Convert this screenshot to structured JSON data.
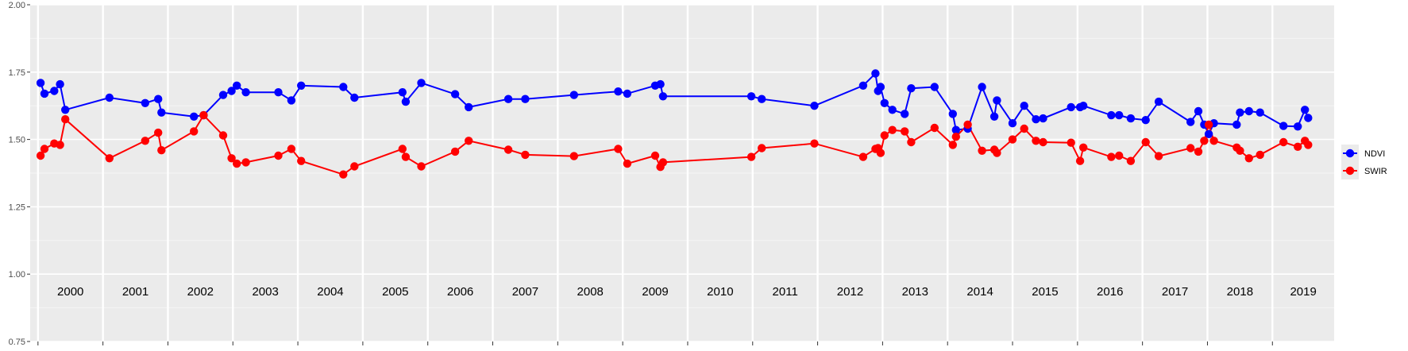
{
  "chart_data": {
    "type": "line",
    "title": "",
    "xlabel": "",
    "ylabel": "",
    "xlim": [
      1999.88,
      2019.95
    ],
    "ylim": [
      0.75,
      2.0
    ],
    "yticks": [
      0.75,
      1.0,
      1.25,
      1.5,
      1.75,
      2.0
    ],
    "ytick_labels": [
      "0.75",
      "1.00",
      "1.25",
      "1.50",
      "1.75",
      "2.00"
    ],
    "year_labels": [
      "2000",
      "2001",
      "2002",
      "2003",
      "2004",
      "2005",
      "2006",
      "2007",
      "2008",
      "2009",
      "2010",
      "2011",
      "2012",
      "2013",
      "2014",
      "2015",
      "2016",
      "2017",
      "2018",
      "2019"
    ],
    "grid": true,
    "legend_position": "right",
    "series": [
      {
        "name": "NDVI",
        "color": "#0000ff",
        "points": [
          [
            2000.04,
            1.71
          ],
          [
            2000.1,
            1.67
          ],
          [
            2000.25,
            1.68
          ],
          [
            2000.34,
            1.705
          ],
          [
            2000.42,
            1.61
          ],
          [
            2001.1,
            1.655
          ],
          [
            2001.65,
            1.635
          ],
          [
            2001.85,
            1.65
          ],
          [
            2001.9,
            1.6
          ],
          [
            2002.4,
            1.585
          ],
          [
            2002.55,
            1.59
          ],
          [
            2002.85,
            1.665
          ],
          [
            2002.98,
            1.68
          ],
          [
            2003.06,
            1.7
          ],
          [
            2003.2,
            1.675
          ],
          [
            2003.7,
            1.675
          ],
          [
            2003.9,
            1.645
          ],
          [
            2004.05,
            1.7
          ],
          [
            2004.7,
            1.695
          ],
          [
            2004.87,
            1.655
          ],
          [
            2005.61,
            1.675
          ],
          [
            2005.66,
            1.64
          ],
          [
            2005.9,
            1.71
          ],
          [
            2006.42,
            1.668
          ],
          [
            2006.63,
            1.62
          ],
          [
            2007.24,
            1.65
          ],
          [
            2007.5,
            1.65
          ],
          [
            2008.25,
            1.665
          ],
          [
            2008.93,
            1.678
          ],
          [
            2009.07,
            1.67
          ],
          [
            2009.5,
            1.7
          ],
          [
            2009.58,
            1.705
          ],
          [
            2009.62,
            1.66
          ],
          [
            2010.98,
            1.66
          ],
          [
            2011.14,
            1.65
          ],
          [
            2011.95,
            1.625
          ],
          [
            2012.7,
            1.7
          ],
          [
            2012.89,
            1.745
          ],
          [
            2012.93,
            1.68
          ],
          [
            2012.97,
            1.695
          ],
          [
            2013.03,
            1.635
          ],
          [
            2013.15,
            1.61
          ],
          [
            2013.34,
            1.595
          ],
          [
            2013.44,
            1.69
          ],
          [
            2013.8,
            1.695
          ],
          [
            2014.08,
            1.595
          ],
          [
            2014.13,
            1.535
          ],
          [
            2014.31,
            1.54
          ],
          [
            2014.53,
            1.695
          ],
          [
            2014.72,
            1.585
          ],
          [
            2014.76,
            1.645
          ],
          [
            2015.0,
            1.56
          ],
          [
            2015.18,
            1.625
          ],
          [
            2015.36,
            1.575
          ],
          [
            2015.47,
            1.578
          ],
          [
            2015.9,
            1.62
          ],
          [
            2016.04,
            1.62
          ],
          [
            2016.09,
            1.625
          ],
          [
            2016.52,
            1.59
          ],
          [
            2016.64,
            1.59
          ],
          [
            2016.82,
            1.578
          ],
          [
            2017.05,
            1.572
          ],
          [
            2017.25,
            1.64
          ],
          [
            2017.74,
            1.565
          ],
          [
            2017.86,
            1.605
          ],
          [
            2017.95,
            1.555
          ],
          [
            2018.02,
            1.52
          ],
          [
            2018.1,
            1.56
          ],
          [
            2018.45,
            1.555
          ],
          [
            2018.5,
            1.6
          ],
          [
            2018.64,
            1.605
          ],
          [
            2018.81,
            1.6
          ],
          [
            2019.17,
            1.55
          ],
          [
            2019.39,
            1.548
          ],
          [
            2019.5,
            1.61
          ],
          [
            2019.55,
            1.58
          ]
        ]
      },
      {
        "name": "SWIR",
        "color": "#ff0000",
        "points": [
          [
            2000.04,
            1.44
          ],
          [
            2000.1,
            1.465
          ],
          [
            2000.25,
            1.485
          ],
          [
            2000.34,
            1.48
          ],
          [
            2000.42,
            1.575
          ],
          [
            2001.1,
            1.43
          ],
          [
            2001.65,
            1.495
          ],
          [
            2001.85,
            1.525
          ],
          [
            2001.9,
            1.46
          ],
          [
            2002.4,
            1.53
          ],
          [
            2002.55,
            1.59
          ],
          [
            2002.85,
            1.515
          ],
          [
            2002.98,
            1.43
          ],
          [
            2003.06,
            1.41
          ],
          [
            2003.2,
            1.415
          ],
          [
            2003.7,
            1.44
          ],
          [
            2003.9,
            1.465
          ],
          [
            2004.05,
            1.42
          ],
          [
            2004.7,
            1.37
          ],
          [
            2004.87,
            1.4
          ],
          [
            2005.61,
            1.465
          ],
          [
            2005.66,
            1.435
          ],
          [
            2005.9,
            1.4
          ],
          [
            2006.42,
            1.455
          ],
          [
            2006.63,
            1.495
          ],
          [
            2007.24,
            1.462
          ],
          [
            2007.5,
            1.443
          ],
          [
            2008.25,
            1.438
          ],
          [
            2008.93,
            1.465
          ],
          [
            2009.07,
            1.41
          ],
          [
            2009.5,
            1.44
          ],
          [
            2009.58,
            1.398
          ],
          [
            2009.62,
            1.415
          ],
          [
            2010.98,
            1.435
          ],
          [
            2011.14,
            1.468
          ],
          [
            2011.95,
            1.485
          ],
          [
            2012.7,
            1.435
          ],
          [
            2012.89,
            1.465
          ],
          [
            2012.93,
            1.468
          ],
          [
            2012.97,
            1.45
          ],
          [
            2013.03,
            1.515
          ],
          [
            2013.15,
            1.535
          ],
          [
            2013.34,
            1.53
          ],
          [
            2013.44,
            1.49
          ],
          [
            2013.8,
            1.543
          ],
          [
            2014.08,
            1.48
          ],
          [
            2014.13,
            1.51
          ],
          [
            2014.31,
            1.555
          ],
          [
            2014.53,
            1.458
          ],
          [
            2014.72,
            1.462
          ],
          [
            2014.76,
            1.45
          ],
          [
            2015.0,
            1.5
          ],
          [
            2015.18,
            1.54
          ],
          [
            2015.36,
            1.495
          ],
          [
            2015.47,
            1.49
          ],
          [
            2015.9,
            1.488
          ],
          [
            2016.04,
            1.42
          ],
          [
            2016.09,
            1.47
          ],
          [
            2016.52,
            1.435
          ],
          [
            2016.64,
            1.44
          ],
          [
            2016.82,
            1.42
          ],
          [
            2017.05,
            1.49
          ],
          [
            2017.25,
            1.438
          ],
          [
            2017.74,
            1.468
          ],
          [
            2017.86,
            1.455
          ],
          [
            2017.95,
            1.495
          ],
          [
            2018.02,
            1.555
          ],
          [
            2018.1,
            1.495
          ],
          [
            2018.45,
            1.47
          ],
          [
            2018.5,
            1.458
          ],
          [
            2018.64,
            1.43
          ],
          [
            2018.81,
            1.443
          ],
          [
            2019.17,
            1.49
          ],
          [
            2019.39,
            1.473
          ],
          [
            2019.5,
            1.495
          ],
          [
            2019.55,
            1.48
          ]
        ]
      }
    ]
  }
}
